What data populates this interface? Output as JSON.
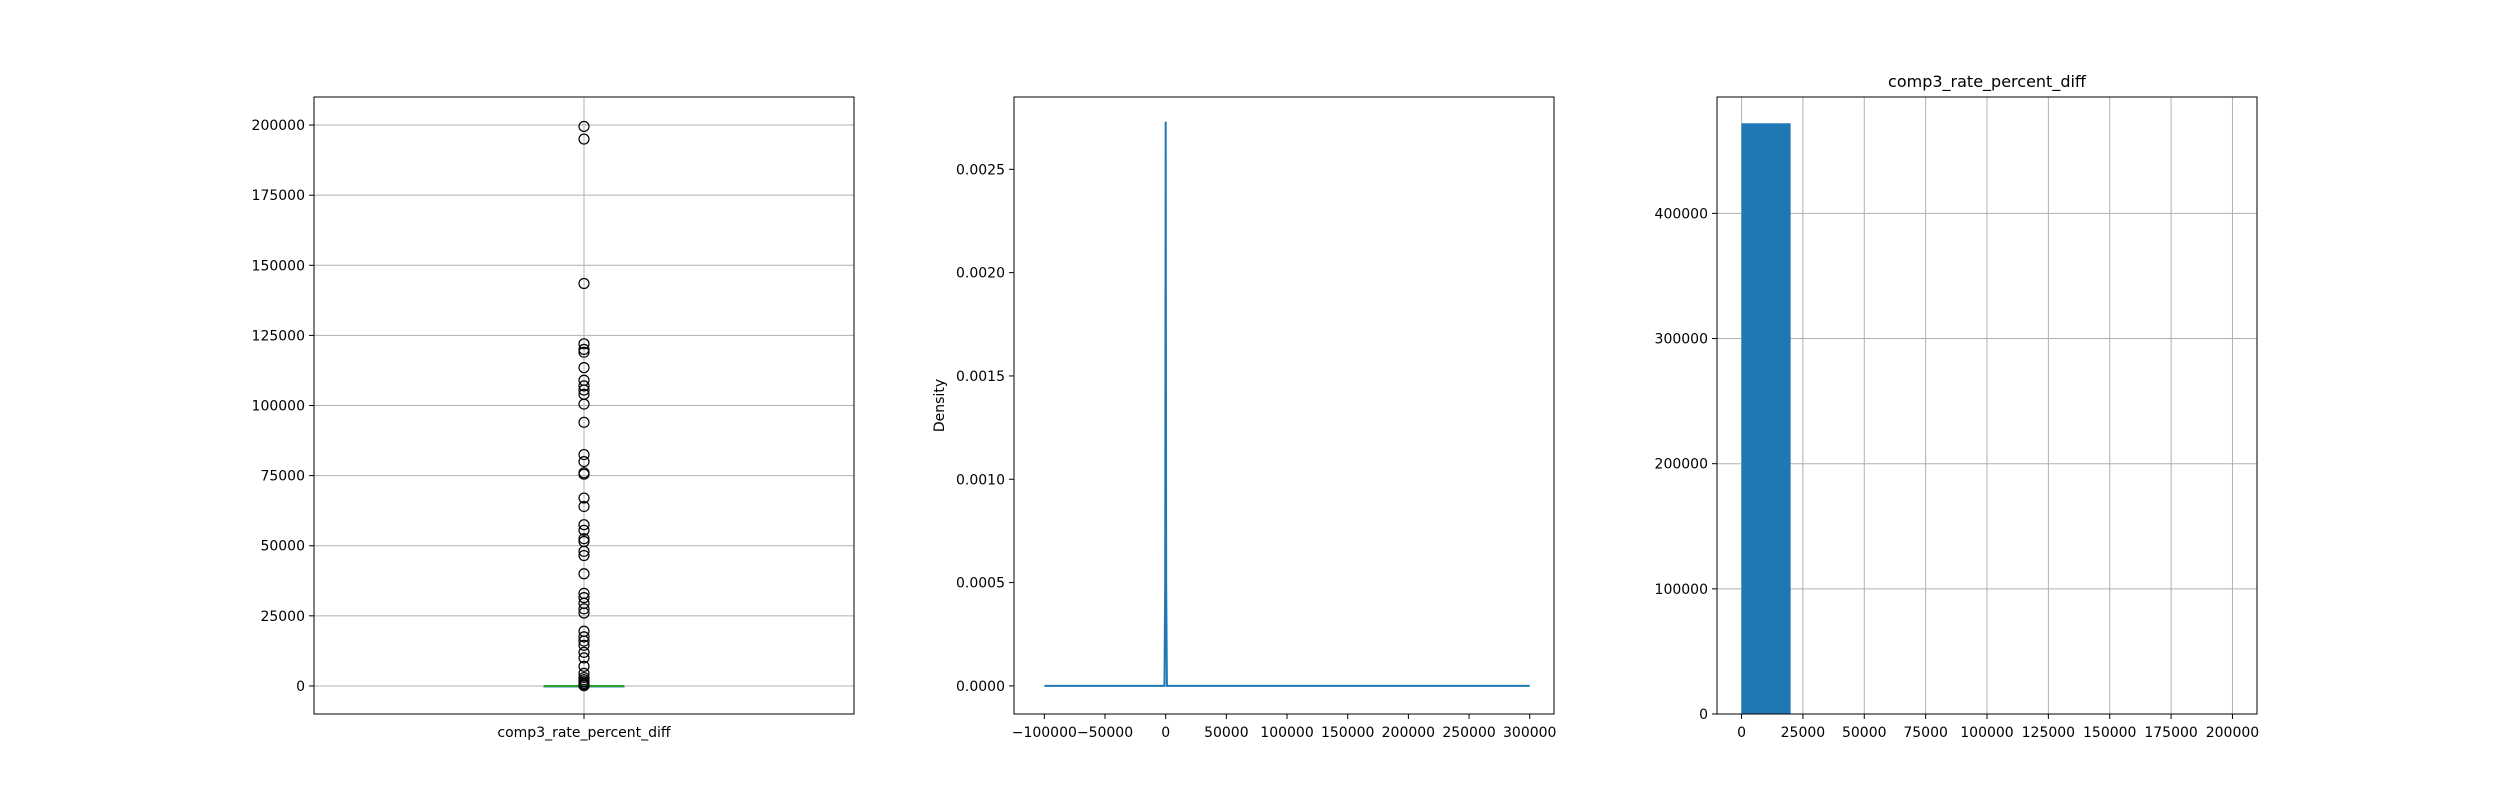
{
  "chart_data": [
    {
      "type": "box",
      "xlabel": "comp3_rate_percent_diff",
      "ylim": [
        -10000,
        210000
      ],
      "yticks": [
        0,
        25000,
        50000,
        75000,
        100000,
        125000,
        150000,
        175000,
        200000
      ],
      "yticklabels": [
        "0",
        "25000",
        "50000",
        "75000",
        "100000",
        "125000",
        "150000",
        "175000",
        "200000"
      ],
      "grid": true,
      "box": {
        "q1": 2,
        "median": 3,
        "q3": 5,
        "whisker_low": 0,
        "whisker_high": 9
      },
      "outliers": [
        199500,
        195000,
        143500,
        122000,
        120000,
        119000,
        113500,
        109000,
        107000,
        105500,
        104000,
        100500,
        94000,
        82500,
        80000,
        76000,
        75500,
        67000,
        64000,
        57500,
        55500,
        52500,
        51500,
        48000,
        46500,
        40000,
        33000,
        31500,
        29500,
        27500,
        26000,
        19500,
        17500,
        16000,
        14500,
        12000,
        10000,
        7000,
        4500,
        3000,
        2200,
        1500,
        900,
        500,
        200,
        100
      ],
      "colors": {
        "median": "#2ca02c",
        "box": "#1f77b4"
      }
    },
    {
      "type": "line",
      "ylabel": "Density",
      "xlim": [
        -125000,
        320000
      ],
      "ylim": [
        -0.000136,
        0.00285
      ],
      "xticks": [
        -100000,
        -50000,
        0,
        50000,
        100000,
        150000,
        200000,
        250000,
        300000
      ],
      "xticklabels": [
        "−100000",
        "−50000",
        "0",
        "50000",
        "100000",
        "150000",
        "200000",
        "250000",
        "300000"
      ],
      "yticks": [
        0,
        0.0005,
        0.001,
        0.0015,
        0.002,
        0.0025
      ],
      "yticklabels": [
        "0.0000",
        "0.0005",
        "0.0010",
        "0.0015",
        "0.0020",
        "0.0025"
      ],
      "grid": false,
      "series": [
        {
          "x": [
            -100000,
            -1000,
            -400,
            0,
            400,
            1000,
            300000
          ],
          "y": [
            0,
            0,
            0.0005,
            0.00273,
            0.0005,
            0,
            0
          ]
        }
      ],
      "colors": {
        "line": "#1f77b4"
      }
    },
    {
      "type": "bar",
      "title": "comp3_rate_percent_diff",
      "xlim": [
        -10000,
        210000
      ],
      "ylim": [
        0,
        493000
      ],
      "xticks": [
        0,
        25000,
        50000,
        75000,
        100000,
        125000,
        150000,
        175000,
        200000
      ],
      "xticklabels": [
        "0",
        "25000",
        "50000",
        "75000",
        "100000",
        "125000",
        "150000",
        "175000",
        "200000"
      ],
      "yticks": [
        0,
        100000,
        200000,
        300000,
        400000
      ],
      "yticklabels": [
        "0",
        "100000",
        "200000",
        "300000",
        "400000"
      ],
      "grid": true,
      "bins": [
        {
          "x0": 0,
          "x1": 20000,
          "count": 472000
        },
        {
          "x0": 20000,
          "x1": 40000,
          "count": 60
        },
        {
          "x0": 40000,
          "x1": 60000,
          "count": 40
        },
        {
          "x0": 60000,
          "x1": 80000,
          "count": 20
        },
        {
          "x0": 80000,
          "x1": 100000,
          "count": 15
        },
        {
          "x0": 100000,
          "x1": 120000,
          "count": 20
        },
        {
          "x0": 120000,
          "x1": 140000,
          "count": 10
        },
        {
          "x0": 140000,
          "x1": 160000,
          "count": 3
        },
        {
          "x0": 160000,
          "x1": 180000,
          "count": 1
        },
        {
          "x0": 180000,
          "x1": 200000,
          "count": 5
        }
      ],
      "colors": {
        "bar": "#1f77b4"
      }
    }
  ]
}
